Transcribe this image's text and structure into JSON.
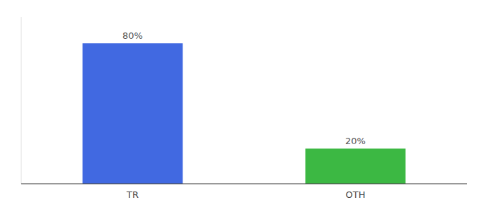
{
  "chart_data": {
    "type": "bar",
    "categories": [
      "TR",
      "OTH"
    ],
    "values": [
      80,
      20
    ],
    "value_labels": [
      "80%",
      "20%"
    ],
    "colors": [
      "#4169e1",
      "#3cb843"
    ],
    "ylim": [
      0,
      95
    ],
    "data_labels": true,
    "tick_labels": "x",
    "grid": false
  }
}
